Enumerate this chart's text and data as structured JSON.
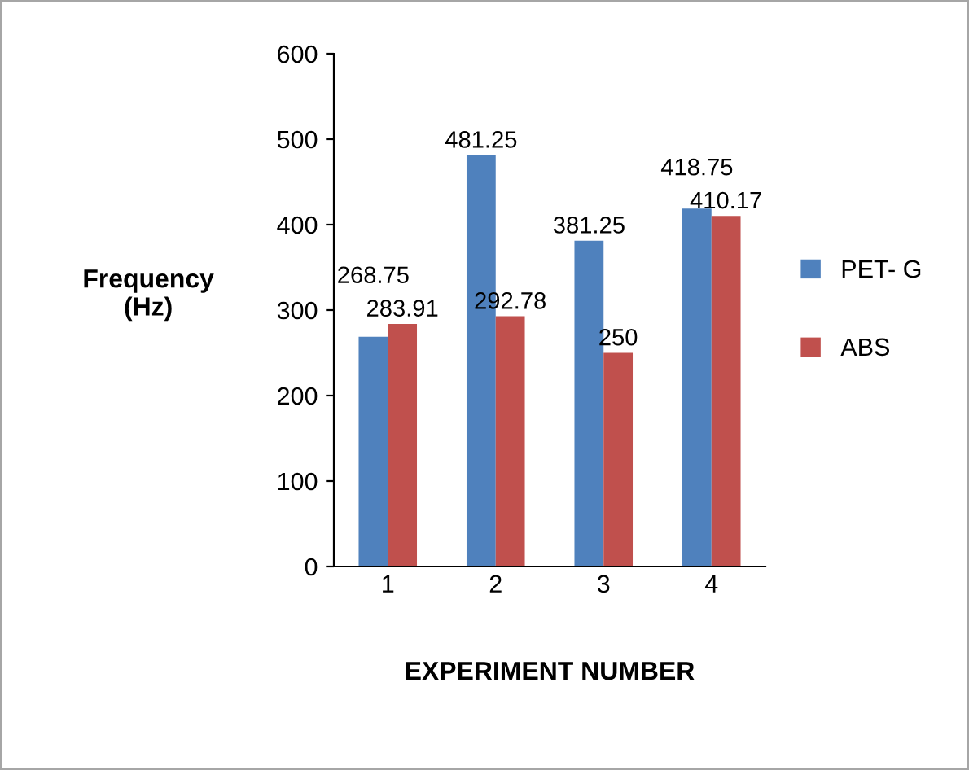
{
  "chart_data": {
    "type": "bar",
    "xlabel": "EXPERIMENT NUMBER",
    "ylabel": "Frequency\n(Hz)",
    "categories": [
      "1",
      "2",
      "3",
      "4"
    ],
    "series": [
      {
        "name": "PET- G",
        "color": "#4f81bd",
        "values": [
          268.75,
          481.25,
          381.25,
          418.75
        ]
      },
      {
        "name": "ABS",
        "color": "#c0504d",
        "values": [
          283.91,
          292.78,
          250,
          410.17
        ]
      }
    ],
    "ylim": [
      0,
      600
    ],
    "yticks": [
      0,
      100,
      200,
      300,
      400,
      500,
      600
    ],
    "grid": false,
    "legend": "right",
    "data_labels": true
  }
}
